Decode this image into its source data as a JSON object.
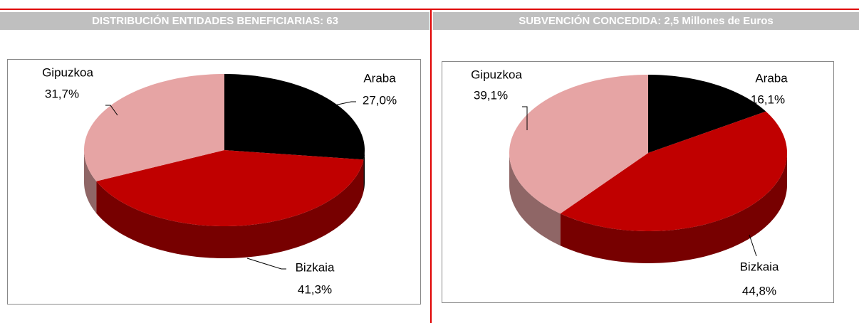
{
  "chart_data": [
    {
      "type": "pie",
      "title": "DISTRIBUCIÓN ENTIDADES BENEFICIARIAS:  63",
      "categories": [
        "Araba",
        "Bizkaia",
        "Gipuzkoa"
      ],
      "values": [
        27.0,
        41.3,
        31.7
      ],
      "value_labels": [
        "27,0%",
        "41,3%",
        "31,7%"
      ],
      "colors": [
        "#000000",
        "#c00000",
        "#e6a4a4"
      ]
    },
    {
      "type": "pie",
      "title": "SUBVENCIÓN CONCEDIDA: 2,5 Millones de Euros",
      "categories": [
        "Araba",
        "Bizkaia",
        "Gipuzkoa"
      ],
      "values": [
        16.1,
        44.8,
        39.1
      ],
      "value_labels": [
        "16,1%",
        "44,8%",
        "39,1%"
      ],
      "colors": [
        "#000000",
        "#c00000",
        "#e6a4a4"
      ]
    }
  ]
}
